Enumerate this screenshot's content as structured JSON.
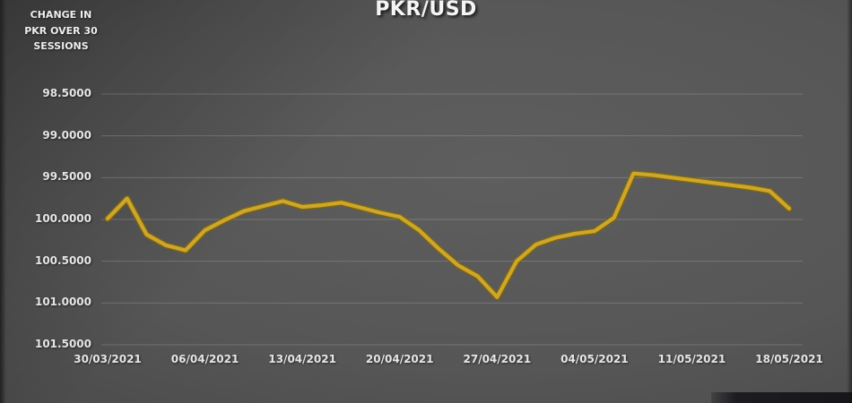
{
  "title": "PKR/USD",
  "corner_label": {
    "lines": [
      "CHANGE IN",
      "PKR OVER 30",
      "SESSIONS"
    ]
  },
  "colors": {
    "background": "#515151",
    "line": "#cda62a",
    "line_edge": "#7d6612",
    "grid": "rgba(235,235,235,0.20)",
    "label_text": "#e6e6e6",
    "title_text": "#f5f5f5"
  },
  "chart_data": {
    "type": "line",
    "title": "PKR/USD",
    "series_name": "PKR per USD",
    "xlabel": "",
    "ylabel": "",
    "legend": "none",
    "grid": "horizontal-only",
    "y_axis": {
      "min": 98.5,
      "max": 101.5,
      "step": 0.5,
      "inverted": true
    },
    "y_tick_labels": [
      "98.5000",
      "99.0000",
      "99.5000",
      "100.0000",
      "100.5000",
      "101.0000",
      "101.5000"
    ],
    "x_tick_labels": [
      "30/03/2021",
      "06/04/2021",
      "13/04/2021",
      "20/04/2021",
      "27/04/2021",
      "04/05/2021",
      "11/05/2021",
      "18/05/2021"
    ],
    "x": [
      "30/03/2021",
      "31/03/2021",
      "01/04/2021",
      "02/04/2021",
      "05/04/2021",
      "06/04/2021",
      "07/04/2021",
      "08/04/2021",
      "09/04/2021",
      "12/04/2021",
      "13/04/2021",
      "14/04/2021",
      "15/04/2021",
      "16/04/2021",
      "19/04/2021",
      "20/04/2021",
      "21/04/2021",
      "22/04/2021",
      "23/04/2021",
      "26/04/2021",
      "27/04/2021",
      "28/04/2021",
      "29/04/2021",
      "30/04/2021",
      "03/05/2021",
      "04/05/2021",
      "05/05/2021",
      "06/05/2021",
      "07/05/2021",
      "10/05/2021",
      "11/05/2021",
      "12/05/2021",
      "13/05/2021",
      "14/05/2021",
      "17/05/2021",
      "18/05/2021"
    ],
    "values": [
      99.99,
      99.75,
      100.18,
      100.31,
      100.37,
      100.13,
      100.01,
      99.9,
      99.84,
      99.78,
      99.85,
      99.83,
      99.8,
      99.86,
      99.92,
      99.97,
      100.13,
      100.35,
      100.55,
      100.68,
      100.93,
      100.5,
      100.3,
      100.22,
      100.17,
      100.14,
      99.98,
      99.45,
      99.47,
      99.5,
      99.53,
      99.56,
      99.59,
      99.62,
      99.66,
      99.87
    ]
  }
}
